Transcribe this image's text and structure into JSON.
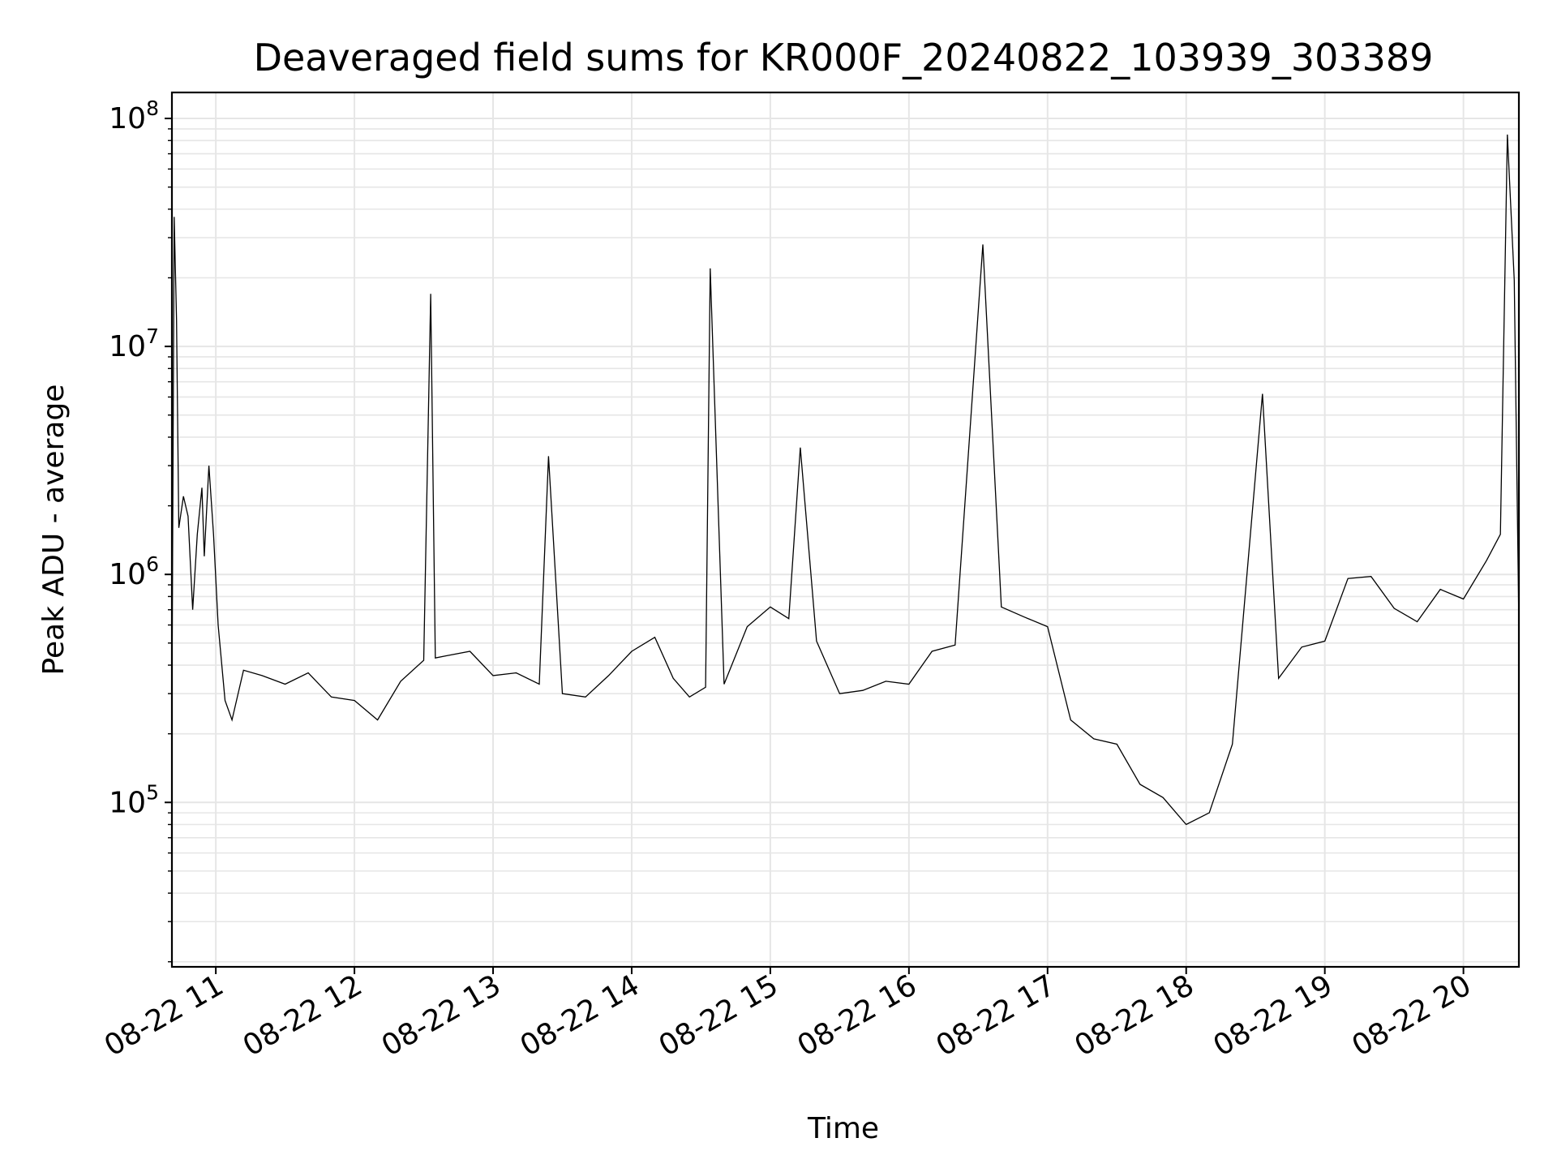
{
  "chart_data": {
    "type": "line",
    "title": "Deaveraged field sums for KR000F_20240822_103939_303389",
    "xlabel": "Time",
    "ylabel": "Peak ADU - average",
    "xscale": "time",
    "yscale": "log",
    "xlim": [
      "2024-08-22 10:41",
      "2024-08-22 20:24"
    ],
    "ylim": [
      19000,
      130000000
    ],
    "grid": true,
    "line_color": "#000000",
    "grid_color": "#e6e6e6",
    "x_ticks": [
      {
        "t": "2024-08-22 11:00",
        "label": "08-22 11"
      },
      {
        "t": "2024-08-22 12:00",
        "label": "08-22 12"
      },
      {
        "t": "2024-08-22 13:00",
        "label": "08-22 13"
      },
      {
        "t": "2024-08-22 14:00",
        "label": "08-22 14"
      },
      {
        "t": "2024-08-22 15:00",
        "label": "08-22 15"
      },
      {
        "t": "2024-08-22 16:00",
        "label": "08-22 16"
      },
      {
        "t": "2024-08-22 17:00",
        "label": "08-22 17"
      },
      {
        "t": "2024-08-22 18:00",
        "label": "08-22 18"
      },
      {
        "t": "2024-08-22 19:00",
        "label": "08-22 19"
      },
      {
        "t": "2024-08-22 20:00",
        "label": "08-22 20"
      }
    ],
    "y_ticks": [
      {
        "value": 100000,
        "base": "10",
        "exp": "5"
      },
      {
        "value": 1000000,
        "base": "10",
        "exp": "6"
      },
      {
        "value": 10000000,
        "base": "10",
        "exp": "7"
      },
      {
        "value": 100000000,
        "base": "10",
        "exp": "8"
      }
    ],
    "series": [
      {
        "x": [
          "2024-08-22 10:41",
          "2024-08-22 10:42",
          "2024-08-22 10:43",
          "2024-08-22 10:44",
          "2024-08-22 10:46",
          "2024-08-22 10:48",
          "2024-08-22 10:50",
          "2024-08-22 10:52",
          "2024-08-22 10:54",
          "2024-08-22 10:55",
          "2024-08-22 10:57",
          "2024-08-22 10:59",
          "2024-08-22 11:01",
          "2024-08-22 11:04",
          "2024-08-22 11:07",
          "2024-08-22 11:12",
          "2024-08-22 11:20",
          "2024-08-22 11:30",
          "2024-08-22 11:40",
          "2024-08-22 11:50",
          "2024-08-22 12:00",
          "2024-08-22 12:10",
          "2024-08-22 12:20",
          "2024-08-22 12:30",
          "2024-08-22 12:33",
          "2024-08-22 12:35",
          "2024-08-22 12:40",
          "2024-08-22 12:50",
          "2024-08-22 13:00",
          "2024-08-22 13:10",
          "2024-08-22 13:20",
          "2024-08-22 13:24",
          "2024-08-22 13:30",
          "2024-08-22 13:40",
          "2024-08-22 13:50",
          "2024-08-22 14:00",
          "2024-08-22 14:10",
          "2024-08-22 14:18",
          "2024-08-22 14:25",
          "2024-08-22 14:32",
          "2024-08-22 14:34",
          "2024-08-22 14:40",
          "2024-08-22 14:50",
          "2024-08-22 15:00",
          "2024-08-22 15:08",
          "2024-08-22 15:13",
          "2024-08-22 15:20",
          "2024-08-22 15:30",
          "2024-08-22 15:40",
          "2024-08-22 15:50",
          "2024-08-22 16:00",
          "2024-08-22 16:10",
          "2024-08-22 16:20",
          "2024-08-22 16:32",
          "2024-08-22 16:40",
          "2024-08-22 16:50",
          "2024-08-22 17:00",
          "2024-08-22 17:10",
          "2024-08-22 17:20",
          "2024-08-22 17:30",
          "2024-08-22 17:40",
          "2024-08-22 17:50",
          "2024-08-22 18:00",
          "2024-08-22 18:10",
          "2024-08-22 18:20",
          "2024-08-22 18:33",
          "2024-08-22 18:40",
          "2024-08-22 18:50",
          "2024-08-22 19:00",
          "2024-08-22 19:10",
          "2024-08-22 19:20",
          "2024-08-22 19:30",
          "2024-08-22 19:40",
          "2024-08-22 19:50",
          "2024-08-22 20:00",
          "2024-08-22 20:10",
          "2024-08-22 20:16",
          "2024-08-22 20:19",
          "2024-08-22 20:22",
          "2024-08-22 20:24"
        ],
        "y": [
          280000,
          37000000,
          13000000,
          1600000,
          2200000,
          1800000,
          700000,
          1500000,
          2400000,
          1200000,
          3000000,
          1500000,
          600000,
          280000,
          230000,
          380000,
          360000,
          330000,
          370000,
          290000,
          280000,
          230000,
          340000,
          420000,
          17000000,
          430000,
          440000,
          460000,
          360000,
          370000,
          330000,
          3300000,
          300000,
          290000,
          360000,
          460000,
          530000,
          350000,
          290000,
          320000,
          22000000,
          330000,
          590000,
          720000,
          640000,
          3600000,
          510000,
          300000,
          310000,
          340000,
          330000,
          460000,
          490000,
          28000000,
          720000,
          650000,
          590000,
          230000,
          190000,
          180000,
          120000,
          105000,
          80000,
          90000,
          180000,
          6200000,
          350000,
          480000,
          510000,
          960000,
          980000,
          710000,
          620000,
          860000,
          780000,
          1150000,
          1500000,
          85000000,
          19500000,
          600000
        ]
      }
    ]
  }
}
